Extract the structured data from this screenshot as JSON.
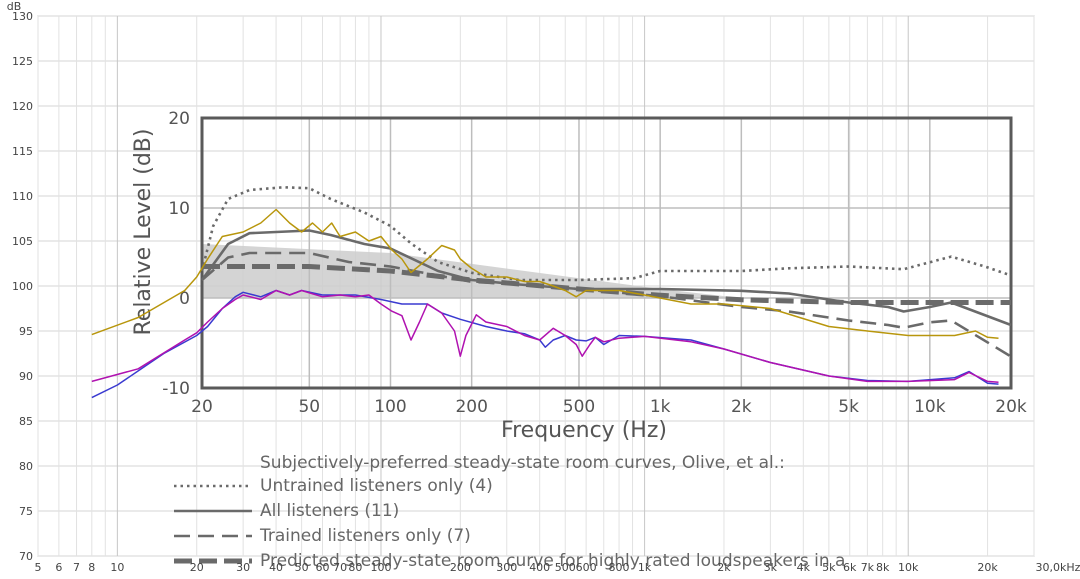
{
  "chart_data": [
    {
      "type": "line",
      "id": "outer-measurement",
      "title": "",
      "xlabel": "",
      "ylabel": "",
      "y_unit": "dB",
      "x_scale": "log",
      "x_axis_unit": "30,0kHz",
      "xlim": [
        5,
        30000
      ],
      "ylim": [
        70,
        130
      ],
      "grid": true,
      "y_ticks": [
        "70",
        "75",
        "80",
        "85",
        "90",
        "95",
        "100",
        "105",
        "110",
        "115",
        "120",
        "125",
        "130"
      ],
      "x_ticks": [
        {
          "v": 5,
          "label": "5"
        },
        {
          "v": 6,
          "label": "6"
        },
        {
          "v": 7,
          "label": "7"
        },
        {
          "v": 8,
          "label": "8"
        },
        {
          "v": 10,
          "label": "10"
        },
        {
          "v": 20,
          "label": "20"
        },
        {
          "v": 30,
          "label": "30"
        },
        {
          "v": 40,
          "label": "40"
        },
        {
          "v": 50,
          "label": "50"
        },
        {
          "v": 60,
          "label": "60"
        },
        {
          "v": 70,
          "label": "70"
        },
        {
          "v": 80,
          "label": "80"
        },
        {
          "v": 100,
          "label": "100"
        },
        {
          "v": 200,
          "label": "200"
        },
        {
          "v": 300,
          "label": "300"
        },
        {
          "v": 400,
          "label": "400"
        },
        {
          "v": 500,
          "label": "500"
        },
        {
          "v": 600,
          "label": "600"
        },
        {
          "v": 800,
          "label": "800"
        },
        {
          "v": 1000,
          "label": "1k"
        },
        {
          "v": 2000,
          "label": "2k"
        },
        {
          "v": 3000,
          "label": "3k"
        },
        {
          "v": 4000,
          "label": "4k"
        },
        {
          "v": 5000,
          "label": "5k"
        },
        {
          "v": 6000,
          "label": "6k"
        },
        {
          "v": 7000,
          "label": "7k"
        },
        {
          "v": 8000,
          "label": "8k"
        },
        {
          "v": 10000,
          "label": "10k"
        },
        {
          "v": 20000,
          "label": "20k"
        }
      ],
      "series": [
        {
          "color": "#b8960c",
          "points": [
            [
              8,
              94.6
            ],
            [
              12,
              96.5
            ],
            [
              18,
              99.5
            ],
            [
              20,
              101
            ],
            [
              22,
              103
            ],
            [
              25,
              105.5
            ],
            [
              30,
              106
            ],
            [
              35,
              107
            ],
            [
              40,
              108.5
            ],
            [
              45,
              107
            ],
            [
              50,
              106
            ],
            [
              55,
              107
            ],
            [
              60,
              106
            ],
            [
              65,
              107
            ],
            [
              70,
              105.5
            ],
            [
              80,
              106
            ],
            [
              90,
              105
            ],
            [
              100,
              105.5
            ],
            [
              110,
              104
            ],
            [
              120,
              103
            ],
            [
              130,
              101.5
            ],
            [
              150,
              103
            ],
            [
              170,
              104.5
            ],
            [
              190,
              104
            ],
            [
              200,
              103
            ],
            [
              220,
              102
            ],
            [
              250,
              101
            ],
            [
              300,
              101
            ],
            [
              350,
              100.5
            ],
            [
              400,
              100.5
            ],
            [
              450,
              100
            ],
            [
              500,
              99.5
            ],
            [
              550,
              98.8
            ],
            [
              600,
              99.5
            ],
            [
              700,
              99.5
            ],
            [
              800,
              99.5
            ],
            [
              1000,
              99
            ],
            [
              1500,
              98
            ],
            [
              2000,
              98
            ],
            [
              3000,
              97.5
            ],
            [
              5000,
              95.5
            ],
            [
              7000,
              95
            ],
            [
              10000,
              94.5
            ],
            [
              15000,
              94.5
            ],
            [
              18000,
              95
            ],
            [
              20000,
              94.3
            ],
            [
              22000,
              94.2
            ]
          ]
        },
        {
          "color": "#3a3ad0",
          "points": [
            [
              8,
              87.6
            ],
            [
              10,
              89
            ],
            [
              15,
              92.5
            ],
            [
              20,
              94.5
            ],
            [
              22,
              95.5
            ],
            [
              25,
              97.5
            ],
            [
              28,
              98.8
            ],
            [
              30,
              99.3
            ],
            [
              35,
              98.8
            ],
            [
              40,
              99.5
            ],
            [
              45,
              99
            ],
            [
              50,
              99.5
            ],
            [
              60,
              99
            ],
            [
              70,
              99
            ],
            [
              80,
              99
            ],
            [
              100,
              98.5
            ],
            [
              120,
              98
            ],
            [
              150,
              98
            ],
            [
              170,
              97
            ],
            [
              200,
              96.3
            ],
            [
              250,
              95.5
            ],
            [
              300,
              95
            ],
            [
              350,
              94.7
            ],
            [
              400,
              94
            ],
            [
              420,
              93.2
            ],
            [
              450,
              94
            ],
            [
              500,
              94.5
            ],
            [
              550,
              94
            ],
            [
              600,
              93.9
            ],
            [
              650,
              94.3
            ],
            [
              700,
              93.5
            ],
            [
              800,
              94.5
            ],
            [
              1000,
              94.4
            ],
            [
              1500,
              94
            ],
            [
              2000,
              93
            ],
            [
              3000,
              91.5
            ],
            [
              5000,
              90
            ],
            [
              7000,
              89.5
            ],
            [
              10000,
              89.4
            ],
            [
              15000,
              89.8
            ],
            [
              17000,
              90.5
            ],
            [
              20000,
              89.2
            ],
            [
              22000,
              89.1
            ]
          ]
        },
        {
          "color": "#b012b0",
          "points": [
            [
              8,
              89.4
            ],
            [
              12,
              90.8
            ],
            [
              18,
              94
            ],
            [
              20,
              94.8
            ],
            [
              22,
              96
            ],
            [
              25,
              97.5
            ],
            [
              28,
              98.5
            ],
            [
              30,
              99
            ],
            [
              35,
              98.5
            ],
            [
              40,
              99.5
            ],
            [
              45,
              99
            ],
            [
              50,
              99.5
            ],
            [
              60,
              98.8
            ],
            [
              70,
              99
            ],
            [
              80,
              98.8
            ],
            [
              90,
              99
            ],
            [
              100,
              98
            ],
            [
              110,
              97.2
            ],
            [
              120,
              96.7
            ],
            [
              130,
              94
            ],
            [
              140,
              96
            ],
            [
              150,
              98
            ],
            [
              170,
              97
            ],
            [
              190,
              95
            ],
            [
              200,
              92.2
            ],
            [
              210,
              94.5
            ],
            [
              230,
              96.8
            ],
            [
              250,
              96
            ],
            [
              300,
              95.5
            ],
            [
              350,
              94.5
            ],
            [
              400,
              94
            ],
            [
              450,
              95.3
            ],
            [
              500,
              94.5
            ],
            [
              550,
              93.5
            ],
            [
              580,
              92.2
            ],
            [
              620,
              93.5
            ],
            [
              650,
              94.3
            ],
            [
              700,
              93.8
            ],
            [
              800,
              94.2
            ],
            [
              1000,
              94.4
            ],
            [
              1500,
              93.8
            ],
            [
              2000,
              93
            ],
            [
              3000,
              91.5
            ],
            [
              5000,
              90
            ],
            [
              7000,
              89.4
            ],
            [
              10000,
              89.4
            ],
            [
              15000,
              89.6
            ],
            [
              17000,
              90.4
            ],
            [
              20000,
              89.4
            ],
            [
              22000,
              89.3
            ]
          ]
        }
      ]
    },
    {
      "type": "line",
      "id": "inset-olive-curves",
      "title": "Subjectively-preferred steady-state room curves, Olive, et al.:",
      "xlabel": "Frequency (Hz)",
      "ylabel": "Relative Level (dB)",
      "x_scale": "log",
      "xlim": [
        20,
        20000
      ],
      "ylim": [
        -10,
        20
      ],
      "grid": true,
      "y_ticks": [
        "-10",
        "0",
        "10",
        "20"
      ],
      "x_ticks": [
        {
          "v": 20,
          "label": "20"
        },
        {
          "v": 50,
          "label": "50"
        },
        {
          "v": 100,
          "label": "100"
        },
        {
          "v": 200,
          "label": "200"
        },
        {
          "v": 500,
          "label": "500"
        },
        {
          "v": 1000,
          "label": "1k"
        },
        {
          "v": 2000,
          "label": "2k"
        },
        {
          "v": 5000,
          "label": "5k"
        },
        {
          "v": 10000,
          "label": "10k"
        },
        {
          "v": 20000,
          "label": "20k"
        }
      ],
      "legend_position": "bottom",
      "shaded_band": {
        "upper": [
          [
            20,
            6
          ],
          [
            100,
            5
          ],
          [
            1000,
            1
          ],
          [
            2000,
            0
          ]
        ],
        "lower": [
          [
            20,
            0
          ],
          [
            100,
            0
          ],
          [
            1000,
            0
          ],
          [
            2000,
            0
          ]
        ],
        "color": "#cccccc"
      },
      "series": [
        {
          "name": "Untrained listeners only (4)",
          "style": "dotted",
          "color": "#6a6a6a",
          "points": [
            [
              20,
              3
            ],
            [
              22,
              8
            ],
            [
              25,
              11
            ],
            [
              30,
              12
            ],
            [
              40,
              12.3
            ],
            [
              50,
              12.2
            ],
            [
              60,
              11
            ],
            [
              80,
              9.5
            ],
            [
              100,
              8
            ],
            [
              120,
              6
            ],
            [
              150,
              4
            ],
            [
              200,
              2.8
            ],
            [
              300,
              2
            ],
            [
              500,
              2
            ],
            [
              800,
              2.2
            ],
            [
              1000,
              3
            ],
            [
              2000,
              3
            ],
            [
              3000,
              3.3
            ],
            [
              5000,
              3.5
            ],
            [
              8000,
              3.2
            ],
            [
              12000,
              4.6
            ],
            [
              16000,
              3.5
            ],
            [
              20000,
              2.5
            ]
          ]
        },
        {
          "name": "All listeners (11)",
          "style": "solid",
          "color": "#6a6a6a",
          "points": [
            [
              20,
              2
            ],
            [
              25,
              6
            ],
            [
              30,
              7.2
            ],
            [
              50,
              7.5
            ],
            [
              60,
              7
            ],
            [
              80,
              6
            ],
            [
              100,
              5.5
            ],
            [
              150,
              3
            ],
            [
              200,
              2
            ],
            [
              300,
              1.5
            ],
            [
              500,
              1
            ],
            [
              1000,
              1
            ],
            [
              2000,
              0.8
            ],
            [
              3000,
              0.5
            ],
            [
              5000,
              -0.5
            ],
            [
              7000,
              -1
            ],
            [
              8000,
              -1.5
            ],
            [
              10000,
              -1
            ],
            [
              12000,
              -0.5
            ],
            [
              20000,
              -3
            ]
          ]
        },
        {
          "name": "Trained listeners only (7)",
          "style": "dashed",
          "color": "#6a6a6a",
          "points": [
            [
              20,
              2
            ],
            [
              25,
              4.5
            ],
            [
              30,
              5
            ],
            [
              50,
              5
            ],
            [
              70,
              4
            ],
            [
              100,
              3.5
            ],
            [
              150,
              2.5
            ],
            [
              200,
              1.8
            ],
            [
              300,
              1.5
            ],
            [
              500,
              1
            ],
            [
              1000,
              0.2
            ],
            [
              2000,
              -1
            ],
            [
              3000,
              -1.5
            ],
            [
              5000,
              -2.5
            ],
            [
              7000,
              -3
            ],
            [
              8000,
              -3.3
            ],
            [
              10000,
              -2.7
            ],
            [
              12000,
              -2.5
            ],
            [
              20000,
              -6.5
            ]
          ]
        },
        {
          "name": "Predicted steady-state room curve for highly rated loudspeakers in a",
          "style": "thick-dashed",
          "color": "#6a6a6a",
          "points": [
            [
              20,
              3.5
            ],
            [
              50,
              3.5
            ],
            [
              100,
              3
            ],
            [
              200,
              2
            ],
            [
              500,
              1
            ],
            [
              1000,
              0.3
            ],
            [
              2000,
              -0.2
            ],
            [
              5000,
              -0.5
            ],
            [
              20000,
              -0.5
            ]
          ]
        }
      ]
    }
  ]
}
